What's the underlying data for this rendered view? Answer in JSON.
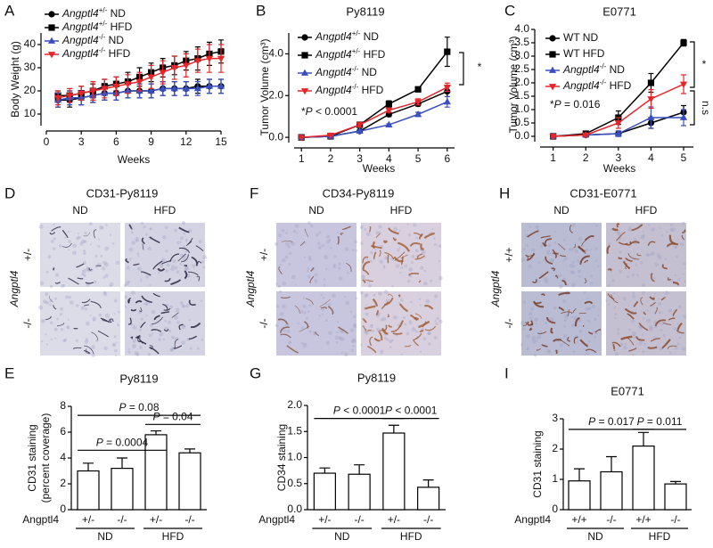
{
  "chart_data": [
    {
      "panel_label": "A",
      "type": "line",
      "ylabel": "Body Weight (g)",
      "xlabel": "Weeks",
      "x": [
        1,
        2,
        3,
        4,
        5,
        6,
        7,
        8,
        9,
        10,
        11,
        12,
        13,
        14,
        15
      ],
      "xlim": [
        0,
        15
      ],
      "xticks": [
        0,
        3,
        6,
        9,
        12,
        15
      ],
      "ylim": [
        5,
        45
      ],
      "yticks": [
        10,
        20,
        30,
        40
      ],
      "series": [
        {
          "name": "Angptl4+/- ND",
          "color": "#000000",
          "marker": "circle",
          "values": [
            16,
            16,
            17,
            18,
            19,
            19,
            20,
            20,
            20,
            21,
            21,
            21,
            22,
            22,
            22
          ],
          "errors": [
            3,
            3,
            3,
            3,
            3,
            3,
            3,
            3,
            3,
            3,
            3,
            3,
            3,
            3,
            3
          ]
        },
        {
          "name": "Angptl4+/- HFD",
          "color": "#000000",
          "marker": "square",
          "values": [
            18,
            18,
            19,
            20,
            22,
            23,
            24,
            26,
            28,
            30,
            31,
            33,
            34,
            36,
            37
          ],
          "errors": [
            2,
            2,
            3,
            3,
            3,
            3,
            4,
            4,
            4,
            4,
            4,
            4,
            5,
            5,
            5
          ]
        },
        {
          "name": "Angptl4-/- ND",
          "color": "#3a4fbf",
          "marker": "triangle",
          "values": [
            16,
            17,
            17,
            18,
            19,
            19,
            20,
            20,
            20,
            21,
            21,
            21,
            21,
            22,
            22
          ],
          "errors": [
            3,
            3,
            3,
            3,
            3,
            3,
            3,
            3,
            3,
            3,
            3,
            3,
            3,
            3,
            3
          ]
        },
        {
          "name": "Angptl4-/- HFD",
          "color": "#e8262a",
          "marker": "triangle-down",
          "values": [
            17,
            18,
            19,
            20,
            21,
            22,
            23,
            24,
            26,
            28,
            30,
            31,
            33,
            34,
            34
          ],
          "errors": [
            3,
            3,
            3,
            4,
            4,
            4,
            4,
            4,
            5,
            5,
            5,
            5,
            5,
            6,
            6
          ]
        }
      ]
    },
    {
      "panel_label": "B",
      "type": "line",
      "title": "Py8119",
      "ylabel": "Tumor Volume (cm³)",
      "xlabel": "Weeks",
      "x": [
        1,
        2,
        3,
        4,
        5,
        6
      ],
      "xlim": [
        0.75,
        6.25
      ],
      "xticks": [
        1,
        2,
        3,
        4,
        5,
        6
      ],
      "ylim": [
        -0.25,
        5
      ],
      "yticks": [
        {
          "value": 0,
          "label": "0.0"
        },
        {
          "value": 2,
          "label": "2.0"
        },
        {
          "value": 4,
          "label": "4.0"
        }
      ],
      "annotations": [
        "*P < 0.0001",
        "*"
      ],
      "series": [
        {
          "name": "Angptl4+/- ND",
          "color": "#000000",
          "marker": "circle",
          "values": [
            0,
            0.05,
            0.3,
            1.1,
            1.6,
            2.2
          ],
          "errors": [
            0,
            0.02,
            0.05,
            0.1,
            0.1,
            0.25
          ]
        },
        {
          "name": "Angptl4+/- HFD",
          "color": "#000000",
          "marker": "square",
          "values": [
            0,
            0.05,
            0.6,
            1.6,
            2.3,
            4.1
          ],
          "errors": [
            0,
            0.03,
            0.1,
            0.15,
            0.1,
            0.7
          ]
        },
        {
          "name": "Angptl4-/- ND",
          "color": "#3a4fbf",
          "marker": "triangle",
          "values": [
            0,
            0.05,
            0.3,
            0.6,
            1.1,
            1.7
          ],
          "errors": [
            0,
            0.02,
            0.05,
            0.05,
            0.1,
            0.25
          ]
        },
        {
          "name": "Angptl4-/- HFD",
          "color": "#e8262a",
          "marker": "triangle-down",
          "values": [
            0,
            0.1,
            0.6,
            1.3,
            1.7,
            2.4
          ],
          "errors": [
            0,
            0.03,
            0.1,
            0.1,
            0.15,
            0.2
          ]
        }
      ]
    },
    {
      "panel_label": "C",
      "type": "line",
      "title": "E0771",
      "ylabel": "Tumor Volume (cm³)",
      "xlabel": "Weeks",
      "x": [
        1,
        2,
        3,
        4,
        5
      ],
      "xlim": [
        0.6,
        5.3
      ],
      "xticks": [
        1,
        2,
        3,
        4,
        5
      ],
      "ylim": [
        -0.2,
        4
      ],
      "yticks": [
        {
          "value": 0,
          "label": "0.0"
        },
        {
          "value": 0.5,
          "label": "0.5"
        },
        {
          "value": 1,
          "label": "1.0"
        },
        {
          "value": 1.5,
          "label": "1.5"
        },
        {
          "value": 2,
          "label": "2.0"
        },
        {
          "value": 2.5,
          "label": "2.5"
        },
        {
          "value": 3,
          "label": "3.0"
        },
        {
          "value": 3.5,
          "label": "3.5"
        },
        {
          "value": 4,
          "label": "4.0"
        }
      ],
      "annotations": [
        "*P = 0.016",
        "*",
        "n.s"
      ],
      "series": [
        {
          "name": "WT ND",
          "color": "#000000",
          "marker": "circle",
          "values": [
            0,
            0.05,
            0.1,
            0.5,
            0.9
          ],
          "errors": [
            0.03,
            0.05,
            0.1,
            0.2,
            0.25
          ]
        },
        {
          "name": "WT HFD",
          "color": "#000000",
          "marker": "square",
          "values": [
            0,
            0.1,
            0.7,
            2.0,
            3.5
          ],
          "errors": [
            0.03,
            0.05,
            0.25,
            0.35,
            0.12
          ]
        },
        {
          "name": "Angptl4-/- ND",
          "color": "#3a4fbf",
          "marker": "triangle",
          "values": [
            0,
            0.05,
            0.1,
            0.7,
            0.7
          ],
          "errors": [
            0.03,
            0.05,
            0.1,
            0.4,
            0.3
          ]
        },
        {
          "name": "Angptl4-/- HFD",
          "color": "#e8262a",
          "marker": "triangle-down",
          "values": [
            0,
            0.05,
            0.5,
            1.4,
            1.95
          ],
          "errors": [
            0.03,
            0.05,
            0.2,
            0.35,
            0.35
          ]
        }
      ]
    },
    {
      "panel_label": "E",
      "type": "bar",
      "title": "Py8119",
      "ylabel": [
        "CD31 staining",
        "(percent coverage)"
      ],
      "row_label": "Angptl4",
      "categories": [
        "+/-",
        "-/-",
        "+/-",
        "-/-"
      ],
      "group_labels": [
        "ND",
        "HFD"
      ],
      "values": [
        3.0,
        3.2,
        5.8,
        4.4
      ],
      "errors": [
        0.6,
        0.8,
        0.3,
        0.3
      ],
      "color": "#ffffff",
      "edgecolor": "#000000",
      "ylim": [
        0,
        8
      ],
      "yticks": [
        0,
        2,
        4,
        6,
        8
      ],
      "annotations": [
        "P = 0.0004",
        "P = 0.08",
        "P = 0.04"
      ]
    },
    {
      "panel_label": "G",
      "type": "bar",
      "title": "Py8119",
      "ylabel": [
        "CD34 staining"
      ],
      "row_label": "Angptl4",
      "categories": [
        "+/-",
        "-/-",
        "+/-",
        "-/-"
      ],
      "group_labels": [
        "ND",
        "HFD"
      ],
      "values": [
        0.7,
        0.68,
        1.47,
        0.43
      ],
      "errors": [
        0.1,
        0.18,
        0.15,
        0.14
      ],
      "color": "#ffffff",
      "edgecolor": "#000000",
      "ylim": [
        0,
        2
      ],
      "yticks": [
        {
          "value": 0,
          "label": "0.0"
        },
        {
          "value": 0.5,
          "label": "0.5"
        },
        {
          "value": 1,
          "label": "1.0"
        },
        {
          "value": 1.5,
          "label": "1.5"
        },
        {
          "value": 2,
          "label": "2.0"
        }
      ],
      "annotations": [
        "P < 0.0001",
        "P < 0.0001"
      ]
    },
    {
      "panel_label": "I",
      "type": "bar",
      "title": "E0771",
      "ylabel": [
        "CD31 staining"
      ],
      "row_label": "Angptl4",
      "categories": [
        "+/+",
        "-/-",
        "+/+",
        "-/-"
      ],
      "group_labels": [
        "ND",
        "HFD"
      ],
      "values": [
        0.95,
        1.25,
        2.1,
        0.85
      ],
      "errors": [
        0.4,
        0.5,
        0.45,
        0.08
      ],
      "color": "#ffffff",
      "edgecolor": "#000000",
      "ylim": [
        0,
        3
      ],
      "yticks": [
        0,
        1,
        2,
        3
      ],
      "annotations": [
        "P = 0.017",
        "P = 0.011"
      ]
    }
  ],
  "image_panels": [
    {
      "panel_label": "D",
      "title": "CD31-Py8119",
      "columns": [
        "ND",
        "HFD"
      ],
      "rows": [
        "+/-",
        "-/-"
      ],
      "row_title": "Angptl4"
    },
    {
      "panel_label": "F",
      "title": "CD34-Py8119",
      "columns": [
        "ND",
        "HFD"
      ],
      "rows": [
        "+/-",
        "-/-"
      ],
      "row_title": "Angptl4"
    },
    {
      "panel_label": "H",
      "title": "CD31-E0771",
      "columns": [
        "ND",
        "HFD"
      ],
      "rows": [
        "+/+",
        "-/-"
      ],
      "row_title": "Angptl4"
    }
  ]
}
